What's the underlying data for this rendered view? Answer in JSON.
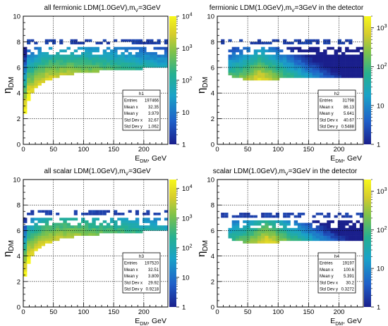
{
  "panels": [
    {
      "id": "p1",
      "title_main": "all fermionic LDM(1.0GeV),m",
      "title_sub": "V",
      "title_tail": "=3GeV",
      "ylabel_main": "η",
      "ylabel_sub": "DM",
      "xlabel_main": "E",
      "xlabel_sub": "DM",
      "xlabel_tail": ", GeV",
      "stats": {
        "name": "h1",
        "rows": [
          {
            "label": "Entries",
            "value": "197466"
          },
          {
            "label": "Mean x",
            "value": "32.35"
          },
          {
            "label": "Mean y",
            "value": "3.979"
          },
          {
            "label": "Std Dev x",
            "value": "32.67"
          },
          {
            "label": "Std Dev y",
            "value": "1.062"
          }
        ]
      },
      "zticks": [
        {
          "value": "1",
          "exp": ""
        },
        {
          "value": "10",
          "exp": ""
        },
        {
          "value": "10",
          "exp": "2"
        },
        {
          "value": "10",
          "exp": "3"
        },
        {
          "value": "10",
          "exp": "4"
        }
      ]
    },
    {
      "id": "p2",
      "title_main": "fermionic LDM(1.0GeV),m",
      "title_sub": "V",
      "title_tail": "=3GeV in the detector",
      "ylabel_main": "η",
      "ylabel_sub": "DM",
      "xlabel_main": "E",
      "xlabel_sub": "DM",
      "xlabel_tail": ", GeV",
      "stats": {
        "name": "h2",
        "rows": [
          {
            "label": "Entries",
            "value": "31798"
          },
          {
            "label": "Mean x",
            "value": "86.13"
          },
          {
            "label": "Mean y",
            "value": "5.641"
          },
          {
            "label": "Std Dev x",
            "value": "40.67"
          },
          {
            "label": "Std Dev y",
            "value": "0.5488"
          }
        ]
      },
      "zticks": [
        {
          "value": "1",
          "exp": ""
        },
        {
          "value": "10",
          "exp": ""
        },
        {
          "value": "10",
          "exp": "2"
        },
        {
          "value": "10",
          "exp": "3"
        }
      ]
    },
    {
      "id": "p3",
      "title_main": "all scalar LDM(1.0GeV),m",
      "title_sub": "V",
      "title_tail": "=3GeV",
      "ylabel_main": "η",
      "ylabel_sub": "DM",
      "xlabel_main": "E",
      "xlabel_sub": "DM",
      "xlabel_tail": ", GeV",
      "stats": {
        "name": "h3",
        "rows": [
          {
            "label": "Entries",
            "value": "197520"
          },
          {
            "label": "Mean x",
            "value": "32.51"
          },
          {
            "label": "Mean y",
            "value": "3.809"
          },
          {
            "label": "Std Dev x",
            "value": "29.92"
          },
          {
            "label": "Std Dev y",
            "value": "0.9218"
          }
        ]
      },
      "zticks": [
        {
          "value": "1",
          "exp": ""
        },
        {
          "value": "10",
          "exp": ""
        },
        {
          "value": "10",
          "exp": "2"
        },
        {
          "value": "10",
          "exp": "3"
        },
        {
          "value": "10",
          "exp": "4"
        }
      ]
    },
    {
      "id": "p4",
      "title_main": "scalar LDM(1.0GeV),m",
      "title_sub": "V",
      "title_tail": "=3GeV in the detector",
      "ylabel_main": "η",
      "ylabel_sub": "DM",
      "xlabel_main": "E",
      "xlabel_sub": "DM",
      "xlabel_tail": ", GeV",
      "stats": {
        "name": "h4",
        "rows": [
          {
            "label": "Entries",
            "value": "19197"
          },
          {
            "label": "Mean x",
            "value": "100.6"
          },
          {
            "label": "Mean y",
            "value": "5.391"
          },
          {
            "label": "Std Dev x",
            "value": "30.2"
          },
          {
            "label": "Std Dev y",
            "value": "0.3272"
          }
        ]
      },
      "zticks": [
        {
          "value": "1",
          "exp": ""
        },
        {
          "value": "10",
          "exp": ""
        },
        {
          "value": "10",
          "exp": "2"
        },
        {
          "value": "10",
          "exp": "3"
        }
      ]
    }
  ],
  "chart_data": [
    {
      "type": "heatmap",
      "title": "all fermionic LDM(1.0GeV),m_V=3GeV",
      "xlabel": "E_DM, GeV",
      "ylabel": "η_DM",
      "xlim": [
        0,
        240
      ],
      "ylim": [
        0,
        10
      ],
      "x_ticks": [
        0,
        50,
        100,
        150,
        200
      ],
      "y_ticks": [
        0,
        2,
        4,
        6,
        8,
        10
      ],
      "z_scale": "log",
      "zlim": [
        1,
        10000
      ],
      "grid": true,
      "legend": "stats box bottom-right",
      "band": {
        "eta_floor_at_E": [
          [
            2,
            2.0
          ],
          [
            5,
            3.0
          ],
          [
            10,
            3.6
          ],
          [
            20,
            4.3
          ],
          [
            40,
            5.0
          ],
          [
            70,
            5.4
          ],
          [
            100,
            5.6
          ],
          [
            150,
            5.8
          ],
          [
            240,
            6.0
          ]
        ],
        "eta_upper_edge": 7.6,
        "eta_outlier_rows": [
          7.8,
          8.0
        ],
        "dense_region": "low E, η 2–5"
      },
      "stats": {
        "Entries": 197466,
        "Mean x": 32.35,
        "Mean y": 3.979,
        "Std Dev x": 32.67,
        "Std Dev y": 1.062
      }
    },
    {
      "type": "heatmap",
      "title": "fermionic LDM(1.0GeV),m_V=3GeV in the detector",
      "xlabel": "E_DM, GeV",
      "ylabel": "η_DM",
      "xlim": [
        0,
        240
      ],
      "ylim": [
        0,
        10
      ],
      "x_ticks": [
        0,
        50,
        100,
        150,
        200
      ],
      "y_ticks": [
        0,
        2,
        4,
        6,
        8,
        10
      ],
      "z_scale": "log",
      "zlim": [
        1,
        2000
      ],
      "grid": true,
      "legend": "stats box bottom-right",
      "band": {
        "eta_floor_at_E": [
          [
            20,
            5.4
          ],
          [
            40,
            5.1
          ],
          [
            60,
            5.0
          ],
          [
            100,
            5.1
          ],
          [
            240,
            5.2
          ]
        ],
        "eta_upper_edge": 7.6,
        "eta_outlier_rows": [
          7.8,
          8.0
        ],
        "dense_region": "E 30–110, η 5–6"
      },
      "stats": {
        "Entries": 31798,
        "Mean x": 86.13,
        "Mean y": 5.641,
        "Std Dev x": 40.67,
        "Std Dev y": 0.5488
      }
    },
    {
      "type": "heatmap",
      "title": "all scalar LDM(1.0GeV),m_V=3GeV",
      "xlabel": "E_DM, GeV",
      "ylabel": "η_DM",
      "xlim": [
        0,
        240
      ],
      "ylim": [
        0,
        10
      ],
      "x_ticks": [
        0,
        50,
        100,
        150,
        200
      ],
      "y_ticks": [
        0,
        2,
        4,
        6,
        8,
        10
      ],
      "z_scale": "log",
      "zlim": [
        1,
        20000
      ],
      "grid": true,
      "legend": "stats box bottom-right",
      "band": {
        "eta_floor_at_E": [
          [
            2,
            2.0
          ],
          [
            5,
            3.0
          ],
          [
            10,
            3.6
          ],
          [
            20,
            4.3
          ],
          [
            40,
            5.0
          ],
          [
            70,
            5.4
          ],
          [
            100,
            5.6
          ],
          [
            150,
            5.8
          ],
          [
            240,
            6.0
          ]
        ],
        "eta_upper_edge": 7.0,
        "eta_outlier_rows": [
          7.2,
          7.4
        ],
        "dense_region": "low E, η 2–5"
      },
      "stats": {
        "Entries": 197520,
        "Mean x": 32.51,
        "Mean y": 3.809,
        "Std Dev x": 29.92,
        "Std Dev y": 0.9218
      }
    },
    {
      "type": "heatmap",
      "title": "scalar LDM(1.0GeV),m_V=3GeV in the detector",
      "xlabel": "E_DM, GeV",
      "ylabel": "η_DM",
      "xlim": [
        0,
        240
      ],
      "ylim": [
        0,
        10
      ],
      "x_ticks": [
        0,
        50,
        100,
        150,
        200
      ],
      "y_ticks": [
        0,
        2,
        4,
        6,
        8,
        10
      ],
      "z_scale": "log",
      "zlim": [
        1,
        2000
      ],
      "grid": true,
      "legend": "stats box bottom-right",
      "band": {
        "eta_floor_at_E": [
          [
            20,
            5.4
          ],
          [
            40,
            5.1
          ],
          [
            60,
            5.0
          ],
          [
            100,
            5.1
          ],
          [
            240,
            5.2
          ]
        ],
        "eta_upper_edge": 6.8,
        "eta_outlier_rows": [
          7.0,
          7.2
        ],
        "dense_region": "E 40–110, η 5–6"
      },
      "stats": {
        "Entries": 19197,
        "Mean x": 100.6,
        "Mean y": 5.391,
        "Std Dev x": 30.2,
        "Std Dev y": 0.3272
      }
    }
  ]
}
